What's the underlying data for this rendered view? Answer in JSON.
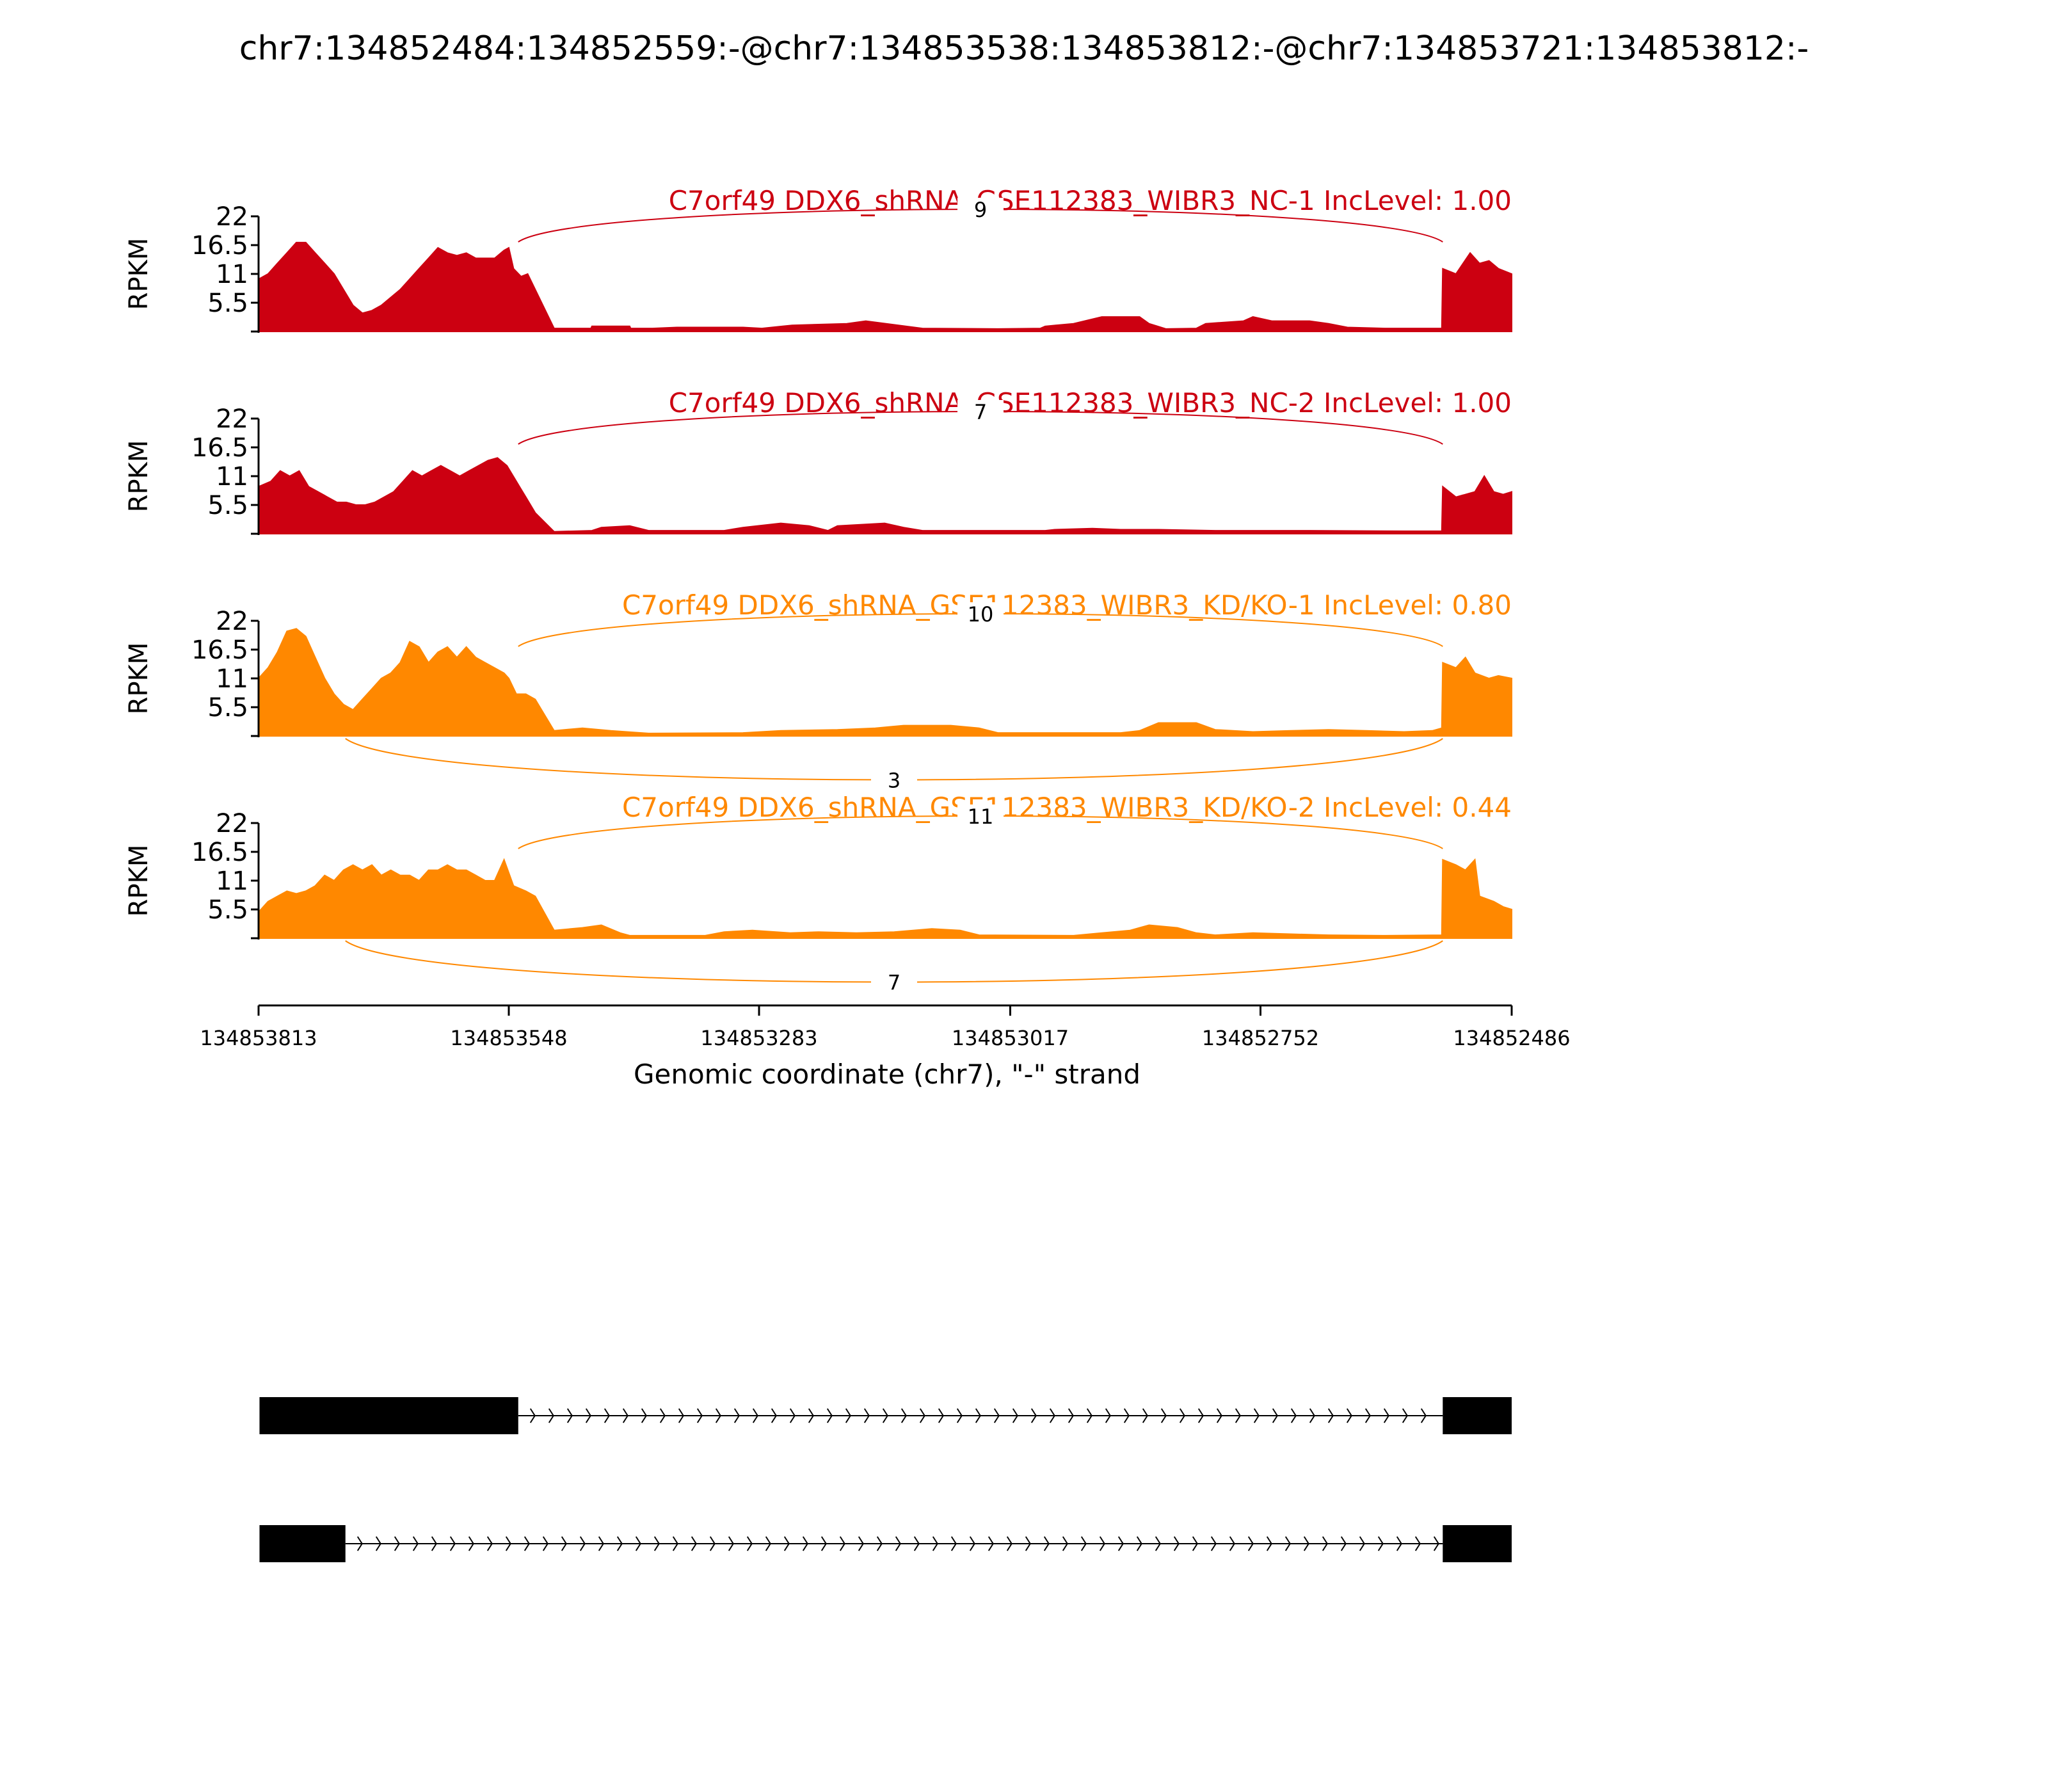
{
  "chart_data": {
    "type": "area",
    "title": "chr7:134852484:134852559:-@chr7:134853538:134853812:-@chr7:134853721:134853812:-",
    "ylabel": "RPKM",
    "xlabel": "Genomic coordinate (chr7), \"-\" strand",
    "x_reversed": true,
    "xlim": [
      134853813,
      134852486
    ],
    "x_ticks": [
      "134853813",
      "134853548",
      "134853283",
      "134853017",
      "134852752",
      "134852486"
    ],
    "y_ticks": [
      "22",
      "16.5",
      "11",
      "5.5"
    ],
    "ylim": [
      0,
      22
    ],
    "colors": {
      "nc": "#cc0011",
      "kd": "#ff8800",
      "exon": "#000000"
    },
    "tracks": [
      {
        "name": "C7orf49 DDX6_shRNA_GSE112383_WIBR3_NC-1 IncLevel: 1.00",
        "color": "#cc0011",
        "profile": [
          [
            134853813,
            10
          ],
          [
            134853803,
            11
          ],
          [
            134853793,
            13
          ],
          [
            134853783,
            15
          ],
          [
            134853773,
            17
          ],
          [
            134853763,
            17
          ],
          [
            134853753,
            15
          ],
          [
            134853743,
            13
          ],
          [
            134853733,
            11
          ],
          [
            134853723,
            8
          ],
          [
            134853713,
            5
          ],
          [
            134853703,
            3.5
          ],
          [
            134853693,
            4
          ],
          [
            134853683,
            5
          ],
          [
            134853673,
            6.5
          ],
          [
            134853663,
            8
          ],
          [
            134853653,
            10
          ],
          [
            134853643,
            12
          ],
          [
            134853633,
            14
          ],
          [
            134853623,
            16
          ],
          [
            134853613,
            15
          ],
          [
            134853603,
            14.5
          ],
          [
            134853593,
            15
          ],
          [
            134853583,
            14
          ],
          [
            134853573,
            14
          ],
          [
            134853563,
            14
          ],
          [
            134853553,
            15.5
          ],
          [
            134853548,
            16
          ],
          [
            134853543,
            12
          ],
          [
            134853535,
            10.5
          ],
          [
            134853528,
            11
          ],
          [
            134853500,
            0.6
          ],
          [
            134853461,
            0.6
          ],
          [
            134853460,
            1
          ],
          [
            134853420,
            1
          ],
          [
            134853419,
            0.6
          ],
          [
            134853396,
            0.6
          ],
          [
            134853370,
            0.8
          ],
          [
            134853330,
            0.8
          ],
          [
            134853300,
            0.8
          ],
          [
            134853280,
            0.6
          ],
          [
            134853248,
            1.2
          ],
          [
            134853190,
            1.5
          ],
          [
            134853170,
            2
          ],
          [
            134853140,
            1.3
          ],
          [
            134853110,
            0.6
          ],
          [
            134853030,
            0.5
          ],
          [
            134852985,
            0.6
          ],
          [
            134852980,
            1
          ],
          [
            134852950,
            1.5
          ],
          [
            134852920,
            2.8
          ],
          [
            134852880,
            2.8
          ],
          [
            134852870,
            1.5
          ],
          [
            134852852,
            0.5
          ],
          [
            134852820,
            0.6
          ],
          [
            134852810,
            1.5
          ],
          [
            134852770,
            2
          ],
          [
            134852760,
            2.8
          ],
          [
            134852740,
            2
          ],
          [
            134852700,
            2
          ],
          [
            134852680,
            1.5
          ],
          [
            134852660,
            0.8
          ],
          [
            134852620,
            0.6
          ],
          [
            134852560,
            0.6
          ],
          [
            134852559,
            12
          ],
          [
            134852545,
            11
          ],
          [
            134852530,
            15
          ],
          [
            134852520,
            13
          ],
          [
            134852510,
            13.5
          ],
          [
            134852500,
            12
          ],
          [
            134852486,
            11
          ]
        ],
        "junctions": [
          {
            "from": 134853538,
            "to": 134852559,
            "count": 9,
            "side": "above"
          }
        ]
      },
      {
        "name": "C7orf49 DDX6_shRNA_GSE112383_WIBR3_NC-2 IncLevel: 1.00",
        "color": "#cc0011",
        "profile": [
          [
            134853813,
            9
          ],
          [
            134853800,
            10
          ],
          [
            134853790,
            12
          ],
          [
            134853780,
            11
          ],
          [
            134853770,
            12
          ],
          [
            134853760,
            9
          ],
          [
            134853750,
            8
          ],
          [
            134853740,
            7
          ],
          [
            134853730,
            6
          ],
          [
            134853720,
            6
          ],
          [
            134853710,
            5.5
          ],
          [
            134853700,
            5.5
          ],
          [
            134853690,
            6
          ],
          [
            134853680,
            7
          ],
          [
            134853670,
            8
          ],
          [
            134853660,
            10
          ],
          [
            134853650,
            12
          ],
          [
            134853640,
            11
          ],
          [
            134853630,
            12
          ],
          [
            134853620,
            13
          ],
          [
            134853610,
            12
          ],
          [
            134853600,
            11
          ],
          [
            134853590,
            12
          ],
          [
            134853580,
            13
          ],
          [
            134853570,
            14
          ],
          [
            134853560,
            14.5
          ],
          [
            134853550,
            13
          ],
          [
            134853540,
            10
          ],
          [
            134853530,
            7
          ],
          [
            134853520,
            4
          ],
          [
            134853500,
            0.4
          ],
          [
            134853460,
            0.6
          ],
          [
            134853450,
            1.2
          ],
          [
            134853420,
            1.5
          ],
          [
            134853400,
            0.6
          ],
          [
            134853320,
            0.6
          ],
          [
            134853300,
            1.2
          ],
          [
            134853260,
            2
          ],
          [
            134853230,
            1.5
          ],
          [
            134853210,
            0.6
          ],
          [
            134853200,
            1.5
          ],
          [
            134853150,
            2
          ],
          [
            134853130,
            1.2
          ],
          [
            134853110,
            0.6
          ],
          [
            134852980,
            0.6
          ],
          [
            134852970,
            0.8
          ],
          [
            134852930,
            1
          ],
          [
            134852900,
            0.8
          ],
          [
            134852860,
            0.8
          ],
          [
            134852800,
            0.6
          ],
          [
            134852700,
            0.6
          ],
          [
            134852600,
            0.5
          ],
          [
            134852560,
            0.5
          ],
          [
            134852559,
            9
          ],
          [
            134852545,
            7
          ],
          [
            134852525,
            8
          ],
          [
            134852515,
            11
          ],
          [
            134852505,
            8
          ],
          [
            134852495,
            7.5
          ],
          [
            134852486,
            8
          ]
        ],
        "junctions": [
          {
            "from": 134853538,
            "to": 134852559,
            "count": 7,
            "side": "above"
          }
        ]
      },
      {
        "name": "C7orf49 DDX6_shRNA_GSE112383_WIBR3_KD/KO-1 IncLevel: 0.80",
        "color": "#ff8800",
        "profile": [
          [
            134853813,
            11
          ],
          [
            134853803,
            13
          ],
          [
            134853793,
            16
          ],
          [
            134853783,
            20
          ],
          [
            134853773,
            20.5
          ],
          [
            134853763,
            19
          ],
          [
            134853753,
            15
          ],
          [
            134853743,
            11
          ],
          [
            134853733,
            8
          ],
          [
            134853723,
            6
          ],
          [
            134853713,
            5
          ],
          [
            134853703,
            7
          ],
          [
            134853693,
            9
          ],
          [
            134853683,
            11
          ],
          [
            134853673,
            12
          ],
          [
            134853663,
            14
          ],
          [
            134853653,
            18
          ],
          [
            134853643,
            17
          ],
          [
            134853633,
            14
          ],
          [
            134853623,
            16
          ],
          [
            134853613,
            17
          ],
          [
            134853603,
            15
          ],
          [
            134853593,
            17
          ],
          [
            134853583,
            15
          ],
          [
            134853573,
            14
          ],
          [
            134853563,
            13
          ],
          [
            134853553,
            12
          ],
          [
            134853548,
            11
          ],
          [
            134853540,
            8
          ],
          [
            134853530,
            8
          ],
          [
            134853520,
            7
          ],
          [
            134853500,
            1
          ],
          [
            134853470,
            1.5
          ],
          [
            134853440,
            1
          ],
          [
            134853400,
            0.5
          ],
          [
            134853300,
            0.6
          ],
          [
            134853260,
            1
          ],
          [
            134853200,
            1.2
          ],
          [
            134853160,
            1.5
          ],
          [
            134853130,
            2
          ],
          [
            134853080,
            2
          ],
          [
            134853050,
            1.5
          ],
          [
            134853030,
            0.6
          ],
          [
            134852900,
            0.6
          ],
          [
            134852880,
            1
          ],
          [
            134852860,
            2.5
          ],
          [
            134852820,
            2.5
          ],
          [
            134852800,
            1.2
          ],
          [
            134852760,
            0.8
          ],
          [
            134852720,
            1
          ],
          [
            134852680,
            1.2
          ],
          [
            134852640,
            1
          ],
          [
            134852600,
            0.8
          ],
          [
            134852570,
            1
          ],
          [
            134852560,
            1.5
          ],
          [
            134852559,
            14
          ],
          [
            134852545,
            13
          ],
          [
            134852535,
            15
          ],
          [
            134852525,
            12
          ],
          [
            134852510,
            11
          ],
          [
            134852500,
            11.5
          ],
          [
            134852486,
            11
          ]
        ],
        "junctions": [
          {
            "from": 134853538,
            "to": 134852559,
            "count": 10,
            "side": "above"
          },
          {
            "from": 134853721,
            "to": 134852559,
            "count": 3,
            "side": "below"
          }
        ]
      },
      {
        "name": "C7orf49 DDX6_shRNA_GSE112383_WIBR3_KD/KO-2 IncLevel: 0.44",
        "color": "#ff8800",
        "profile": [
          [
            134853813,
            5
          ],
          [
            134853803,
            7
          ],
          [
            134853793,
            8
          ],
          [
            134853783,
            9
          ],
          [
            134853773,
            8.5
          ],
          [
            134853763,
            9
          ],
          [
            134853753,
            10
          ],
          [
            134853743,
            12
          ],
          [
            134853733,
            11
          ],
          [
            134853723,
            13
          ],
          [
            134853713,
            14
          ],
          [
            134853703,
            13
          ],
          [
            134853693,
            14
          ],
          [
            134853683,
            12
          ],
          [
            134853673,
            13
          ],
          [
            134853663,
            12
          ],
          [
            134853653,
            12
          ],
          [
            134853643,
            11
          ],
          [
            134853633,
            13
          ],
          [
            134853623,
            13
          ],
          [
            134853613,
            14
          ],
          [
            134853603,
            13
          ],
          [
            134853593,
            13
          ],
          [
            134853583,
            12
          ],
          [
            134853573,
            11
          ],
          [
            134853563,
            11
          ],
          [
            134853553,
            15
          ],
          [
            134853543,
            10
          ],
          [
            134853530,
            9
          ],
          [
            134853520,
            8
          ],
          [
            134853500,
            1.5
          ],
          [
            134853470,
            2
          ],
          [
            134853450,
            2.5
          ],
          [
            134853430,
            1
          ],
          [
            134853420,
            0.5
          ],
          [
            134853340,
            0.5
          ],
          [
            134853320,
            1.2
          ],
          [
            134853290,
            1.5
          ],
          [
            134853250,
            1
          ],
          [
            134853220,
            1.2
          ],
          [
            134853180,
            1
          ],
          [
            134853140,
            1.2
          ],
          [
            134853100,
            1.8
          ],
          [
            134853070,
            1.5
          ],
          [
            134853050,
            0.6
          ],
          [
            134852950,
            0.5
          ],
          [
            134852920,
            1
          ],
          [
            134852890,
            1.5
          ],
          [
            134852870,
            2.5
          ],
          [
            134852840,
            2
          ],
          [
            134852820,
            1
          ],
          [
            134852800,
            0.6
          ],
          [
            134852760,
            1
          ],
          [
            134852720,
            0.8
          ],
          [
            134852680,
            0.6
          ],
          [
            134852620,
            0.5
          ],
          [
            134852560,
            0.6
          ],
          [
            134852559,
            15
          ],
          [
            134852545,
            14
          ],
          [
            134852535,
            13
          ],
          [
            134852525,
            15
          ],
          [
            134852520,
            8
          ],
          [
            134852505,
            7
          ],
          [
            134852495,
            6
          ],
          [
            134852486,
            5.5
          ]
        ],
        "junctions": [
          {
            "from": 134853538,
            "to": 134852559,
            "count": 11,
            "side": "above"
          },
          {
            "from": 134853721,
            "to": 134852559,
            "count": 7,
            "side": "below"
          }
        ]
      }
    ],
    "isoforms": [
      {
        "exons": [
          [
            134853812,
            134853538
          ],
          [
            134852559,
            134852486
          ]
        ]
      },
      {
        "exons": [
          [
            134853812,
            134853721
          ],
          [
            134852559,
            134852486
          ]
        ]
      }
    ]
  }
}
